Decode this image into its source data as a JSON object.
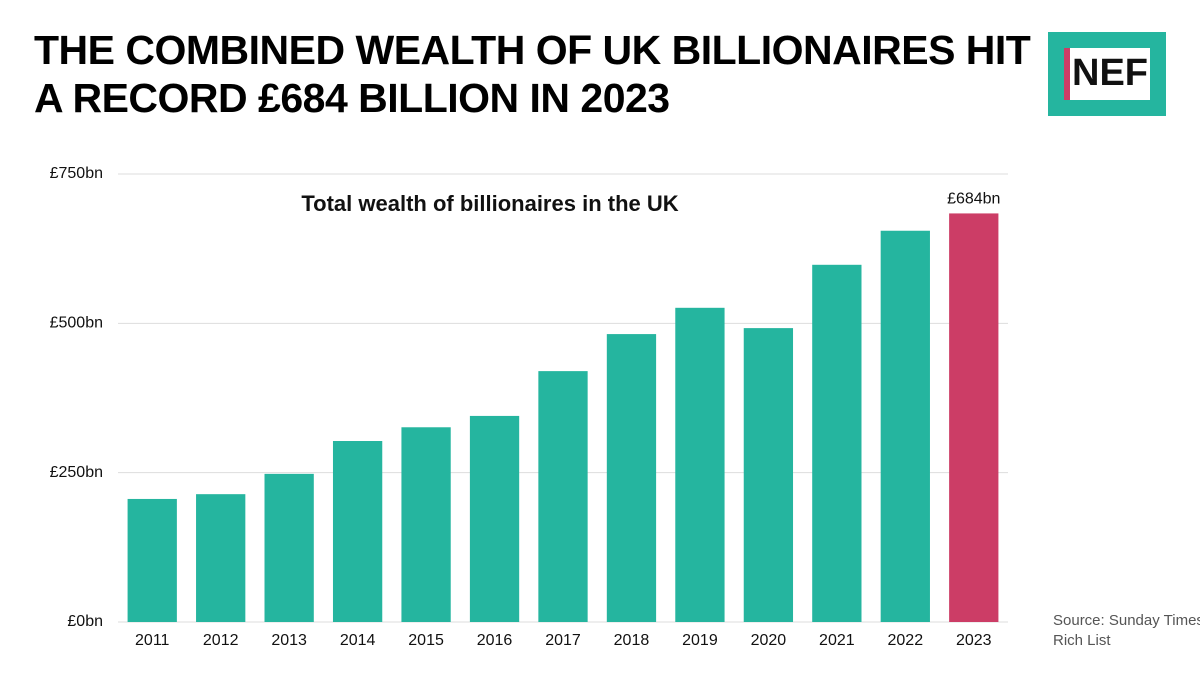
{
  "chart_data": {
    "type": "bar",
    "title": "THE COMBINED WEALTH OF UK BILLIONAIRES HIT A RECORD £684 BILLION IN 2023",
    "subtitle": "Total wealth of billionaires in the UK",
    "categories": [
      "2011",
      "2012",
      "2013",
      "2014",
      "2015",
      "2016",
      "2017",
      "2018",
      "2019",
      "2020",
      "2021",
      "2022",
      "2023"
    ],
    "values": [
      206,
      214,
      248,
      303,
      326,
      345,
      420,
      482,
      526,
      492,
      598,
      655,
      684
    ],
    "value_labels": [
      null,
      null,
      null,
      null,
      null,
      null,
      null,
      null,
      null,
      null,
      null,
      null,
      "£684bn"
    ],
    "colors": [
      "#25b59f",
      "#25b59f",
      "#25b59f",
      "#25b59f",
      "#25b59f",
      "#25b59f",
      "#25b59f",
      "#25b59f",
      "#25b59f",
      "#25b59f",
      "#25b59f",
      "#25b59f",
      "#cc3d66"
    ],
    "ylim": [
      0,
      750
    ],
    "yticks": [
      {
        "value": 0,
        "label": "£0bn"
      },
      {
        "value": 250,
        "label": "£250bn"
      },
      {
        "value": 500,
        "label": "£500bn"
      },
      {
        "value": 750,
        "label": "£750bn"
      }
    ],
    "grid": true,
    "source": "Source: Sunday Times Rich List"
  },
  "logo": "NEF"
}
